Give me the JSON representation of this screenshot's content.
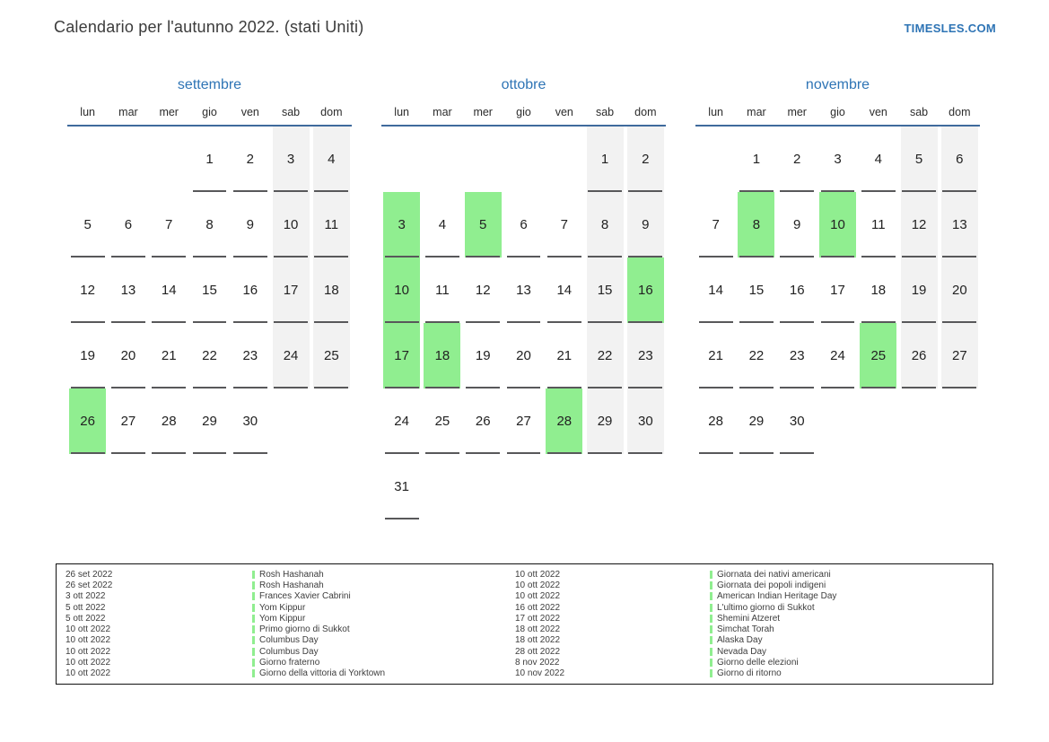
{
  "header": {
    "title": "Calendario per l'autunno 2022. (stati Uniti)",
    "site": "TIMESLES.COM"
  },
  "colors": {
    "accent_blue": "#2e74b5",
    "header_line_blue": "#3f6a9c",
    "holiday_green": "#90ee90",
    "weekend_gray": "#f2f2f2",
    "cell_line_gray": "#58585a"
  },
  "calendar": {
    "weekdays": [
      "lun",
      "mar",
      "mer",
      "gio",
      "ven",
      "sab",
      "dom"
    ],
    "months": [
      {
        "name": "settembre",
        "weeks": [
          [
            null,
            null,
            null,
            1,
            2,
            3,
            4
          ],
          [
            5,
            6,
            7,
            8,
            9,
            10,
            11
          ],
          [
            12,
            13,
            14,
            15,
            16,
            17,
            18
          ],
          [
            19,
            20,
            21,
            22,
            23,
            24,
            25
          ],
          [
            26,
            27,
            28,
            29,
            30,
            null,
            null
          ]
        ],
        "holiday_days": [
          26
        ]
      },
      {
        "name": "ottobre",
        "weeks": [
          [
            null,
            null,
            null,
            null,
            null,
            1,
            2
          ],
          [
            3,
            4,
            5,
            6,
            7,
            8,
            9
          ],
          [
            10,
            11,
            12,
            13,
            14,
            15,
            16
          ],
          [
            17,
            18,
            19,
            20,
            21,
            22,
            23
          ],
          [
            24,
            25,
            26,
            27,
            28,
            29,
            30
          ],
          [
            31,
            null,
            null,
            null,
            null,
            null,
            null
          ]
        ],
        "holiday_days": [
          3,
          5,
          10,
          16,
          17,
          18,
          28
        ]
      },
      {
        "name": "novembre",
        "weeks": [
          [
            null,
            1,
            2,
            3,
            4,
            5,
            6
          ],
          [
            7,
            8,
            9,
            10,
            11,
            12,
            13
          ],
          [
            14,
            15,
            16,
            17,
            18,
            19,
            20
          ],
          [
            21,
            22,
            23,
            24,
            25,
            26,
            27
          ],
          [
            28,
            29,
            30,
            null,
            null,
            null,
            null
          ]
        ],
        "holiday_days": [
          8,
          10,
          25
        ]
      }
    ]
  },
  "legend": {
    "left": [
      {
        "date": "26 set 2022",
        "name": "Rosh Hashanah"
      },
      {
        "date": "26 set 2022",
        "name": "Rosh Hashanah"
      },
      {
        "date": "3 ott 2022",
        "name": "Frances Xavier Cabrini"
      },
      {
        "date": "5 ott 2022",
        "name": "Yom Kippur"
      },
      {
        "date": "5 ott 2022",
        "name": "Yom Kippur"
      },
      {
        "date": "10 ott 2022",
        "name": "Primo giorno di Sukkot"
      },
      {
        "date": "10 ott 2022",
        "name": "Columbus Day"
      },
      {
        "date": "10 ott 2022",
        "name": "Columbus Day"
      },
      {
        "date": "10 ott 2022",
        "name": "Giorno fraterno"
      },
      {
        "date": "10 ott 2022",
        "name": "Giorno della vittoria di Yorktown"
      }
    ],
    "right": [
      {
        "date": "10 ott 2022",
        "name": "Giornata dei nativi americani"
      },
      {
        "date": "10 ott 2022",
        "name": "Giornata dei popoli indigeni"
      },
      {
        "date": "10 ott 2022",
        "name": "American Indian Heritage Day"
      },
      {
        "date": "16 ott 2022",
        "name": "L'ultimo giorno di Sukkot"
      },
      {
        "date": "17 ott 2022",
        "name": "Shemini Atzeret"
      },
      {
        "date": "18 ott 2022",
        "name": "Simchat Torah"
      },
      {
        "date": "18 ott 2022",
        "name": "Alaska Day"
      },
      {
        "date": "28 ott 2022",
        "name": "Nevada Day"
      },
      {
        "date": "8 nov 2022",
        "name": "Giorno delle elezioni"
      },
      {
        "date": "10 nov 2022",
        "name": "Giorno di ritorno"
      }
    ]
  }
}
